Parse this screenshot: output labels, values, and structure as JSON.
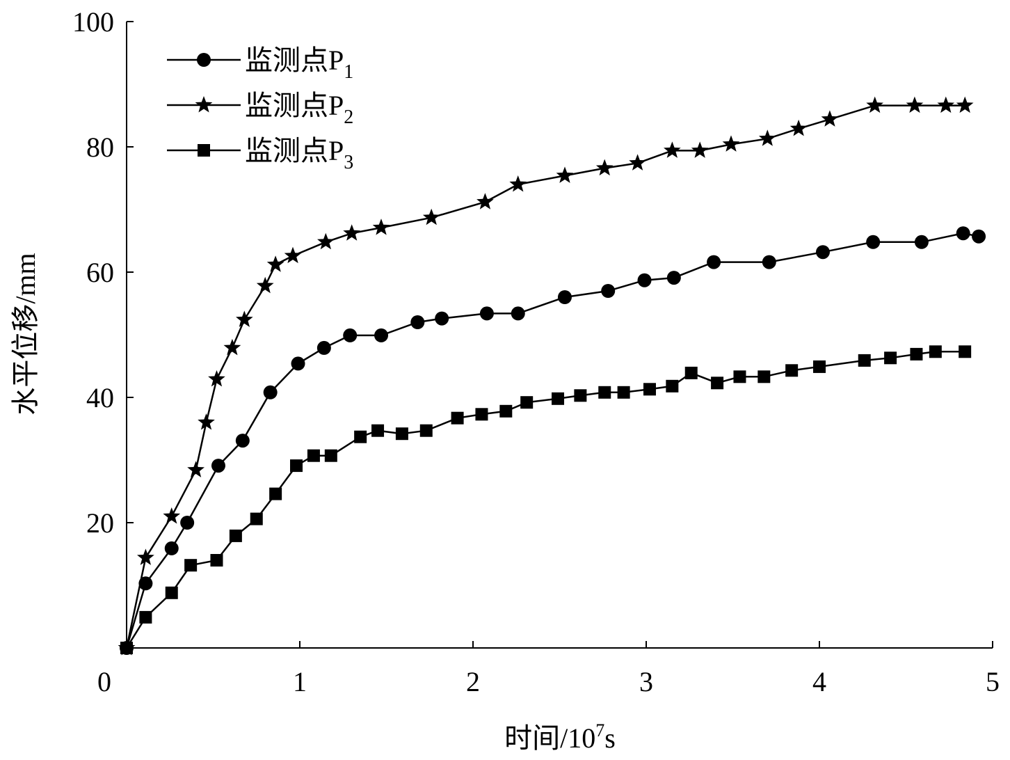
{
  "chart_data": {
    "type": "line",
    "xlabel": {
      "text": "时间/10",
      "sup": "7",
      "unit": "s"
    },
    "ylabel": "水平位移/mm",
    "xlim": [
      0,
      5
    ],
    "ylim": [
      0,
      100
    ],
    "xticks": [
      "0",
      "1",
      "2",
      "3",
      "4",
      "5"
    ],
    "yticks": [
      "20",
      "40",
      "60",
      "80",
      "100"
    ],
    "grid": false,
    "legend_position": "top-left",
    "series": [
      {
        "name": "监测点P",
        "sub": "1",
        "marker": "circle",
        "x": [
          0,
          0.11,
          0.26,
          0.35,
          0.53,
          0.67,
          0.83,
          0.99,
          1.14,
          1.29,
          1.47,
          1.68,
          1.82,
          2.08,
          2.26,
          2.53,
          2.78,
          2.99,
          3.16,
          3.39,
          3.71,
          4.02,
          4.31,
          4.59,
          4.83,
          4.92
        ],
        "y": [
          0,
          10.3,
          15.9,
          20.0,
          29.1,
          33.1,
          40.8,
          45.4,
          47.9,
          49.9,
          49.9,
          52.0,
          52.6,
          53.4,
          53.4,
          56.0,
          57.0,
          58.7,
          59.1,
          61.6,
          61.6,
          63.2,
          64.8,
          64.8,
          66.2,
          65.7
        ]
      },
      {
        "name": "监测点P",
        "sub": "2",
        "marker": "star",
        "x": [
          0,
          0.11,
          0.26,
          0.4,
          0.46,
          0.52,
          0.61,
          0.68,
          0.8,
          0.86,
          0.96,
          1.15,
          1.3,
          1.47,
          1.76,
          2.07,
          2.26,
          2.53,
          2.76,
          2.95,
          3.15,
          3.31,
          3.49,
          3.7,
          3.88,
          4.06,
          4.32,
          4.55,
          4.73,
          4.84
        ],
        "y": [
          0,
          14.4,
          21.0,
          28.4,
          36.0,
          42.9,
          47.9,
          52.4,
          57.8,
          61.2,
          62.6,
          64.8,
          66.2,
          67.1,
          68.7,
          71.2,
          74.0,
          75.4,
          76.6,
          77.4,
          79.4,
          79.4,
          80.4,
          81.3,
          82.9,
          84.4,
          86.6,
          86.6,
          86.6,
          86.6
        ]
      },
      {
        "name": "监测点P",
        "sub": "3",
        "marker": "square",
        "x": [
          0,
          0.11,
          0.26,
          0.37,
          0.52,
          0.63,
          0.75,
          0.86,
          0.98,
          1.08,
          1.18,
          1.35,
          1.45,
          1.59,
          1.73,
          1.91,
          2.05,
          2.19,
          2.31,
          2.49,
          2.62,
          2.76,
          2.87,
          3.02,
          3.15,
          3.26,
          3.41,
          3.54,
          3.68,
          3.84,
          4.0,
          4.26,
          4.41,
          4.56,
          4.67,
          4.84
        ],
        "y": [
          0,
          4.9,
          8.8,
          13.2,
          14.0,
          17.9,
          20.6,
          24.6,
          29.1,
          30.7,
          30.7,
          33.7,
          34.7,
          34.2,
          34.7,
          36.7,
          37.3,
          37.8,
          39.2,
          39.8,
          40.3,
          40.8,
          40.8,
          41.3,
          41.8,
          43.9,
          42.3,
          43.3,
          43.3,
          44.3,
          44.9,
          45.9,
          46.3,
          46.9,
          47.3,
          47.3
        ]
      }
    ]
  }
}
